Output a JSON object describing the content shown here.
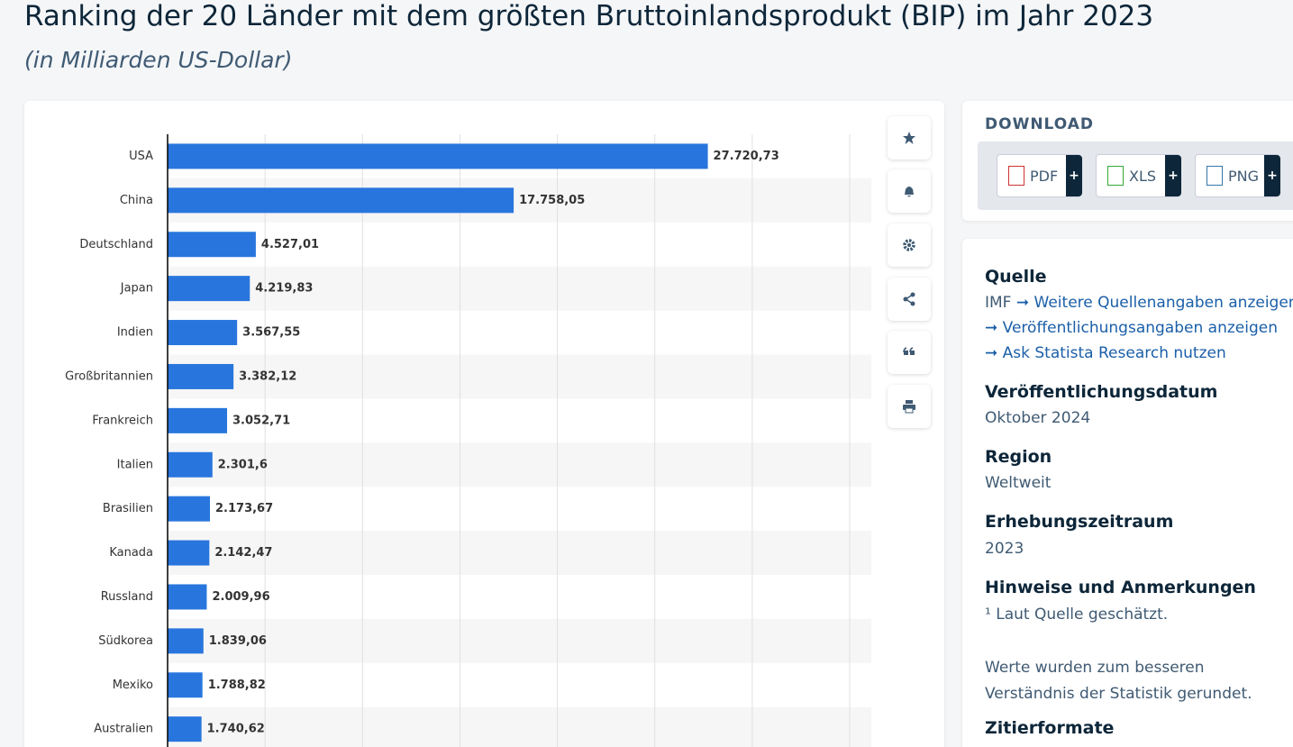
{
  "header": {
    "title": "Ranking der 20 Länder mit dem größten Bruttoinlandsprodukt (BIP) im Jahr 2023",
    "subtitle": "(in Milliarden US-Dollar)"
  },
  "chart_data": {
    "type": "bar",
    "orientation": "horizontal",
    "categories": [
      "USA",
      "China",
      "Deutschland",
      "Japan",
      "Indien",
      "Großbritannien",
      "Frankreich",
      "Italien",
      "Brasilien",
      "Kanada",
      "Russland",
      "Südkorea",
      "Mexiko",
      "Australien"
    ],
    "values": [
      27720.73,
      17758.05,
      4527.01,
      4219.83,
      3567.55,
      3382.12,
      3052.71,
      2301.6,
      2173.67,
      2142.47,
      2009.96,
      1839.06,
      1788.82,
      1740.62
    ],
    "value_labels": [
      "27.720,73",
      "17.758,05",
      "4.527,01",
      "4.219,83",
      "3.567,55",
      "3.382,12",
      "3.052,71",
      "2.301,6",
      "2.173,67",
      "2.142,47",
      "2.009,96",
      "1.839,06",
      "1.788,82",
      "1.740,62"
    ],
    "color": "#2876dd",
    "xlim": [
      0,
      35000
    ],
    "xticks": [
      0,
      5000,
      10000,
      15000,
      20000,
      25000,
      30000,
      35000
    ],
    "grid": true
  },
  "download": {
    "title": "DOWNLOAD",
    "buttons": [
      "PDF",
      "XLS",
      "PNG"
    ],
    "plus": "+"
  },
  "info": {
    "source_heading": "Quelle",
    "source": "IMF",
    "links": [
      "Weitere Quellenangaben anzeigen",
      "Veröffentlichungsangaben anzeigen",
      "Ask Statista Research nutzen"
    ],
    "sections": [
      {
        "heading": "Veröffentlichungsdatum",
        "text": "Oktober 2024"
      },
      {
        "heading": "Region",
        "text": "Weltweit"
      },
      {
        "heading": "Erhebungszeitraum",
        "text": "2023"
      },
      {
        "heading": "Hinweise und Anmerkungen",
        "text": "¹ Laut Quelle geschätzt."
      }
    ],
    "note": "Werte wurden zum besseren Verständnis der Statistik gerundet.",
    "last_heading": "Zitierformate"
  }
}
